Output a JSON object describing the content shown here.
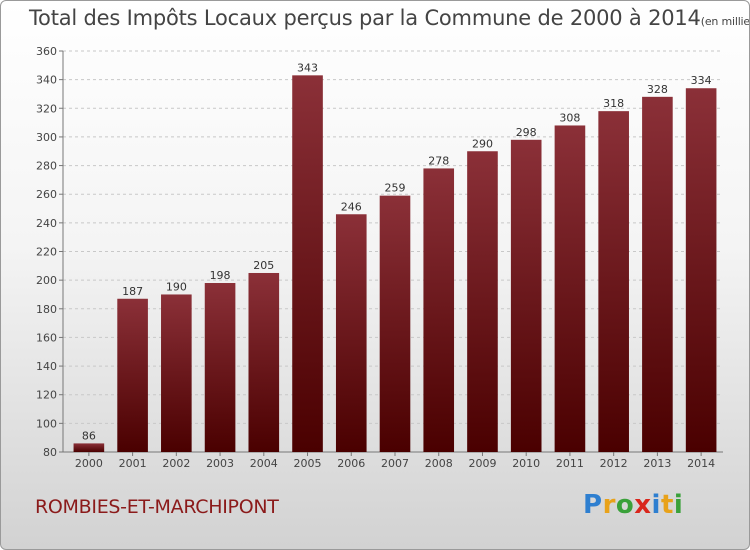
{
  "header": {
    "title": "Total des Impôts Locaux perçus par la Commune de 2000 à 2014",
    "unit": "(en milliers d'€)"
  },
  "footer": {
    "commune": "ROMBIES-ET-MARCHIPONT",
    "logo_letters": [
      "P",
      "r",
      "o",
      "x",
      "i",
      "t",
      "i"
    ],
    "logo_colors": [
      "#2e7fd0",
      "#e8a21a",
      "#3aa13a",
      "#d9261c",
      "#2e7fd0",
      "#e8a21a",
      "#3aa13a"
    ]
  },
  "chart_data": {
    "type": "bar",
    "title": "Total des Impôts Locaux perçus par la Commune de 2000 à 2014",
    "xlabel": "",
    "ylabel": "",
    "categories": [
      "2000",
      "2001",
      "2002",
      "2003",
      "2004",
      "2005",
      "2006",
      "2007",
      "2008",
      "2009",
      "2010",
      "2011",
      "2012",
      "2013",
      "2014"
    ],
    "values": [
      86,
      187,
      190,
      198,
      205,
      343,
      246,
      259,
      278,
      290,
      298,
      308,
      318,
      328,
      334
    ],
    "ylim": [
      80,
      360
    ],
    "yticks": [
      80,
      100,
      120,
      140,
      160,
      180,
      200,
      220,
      240,
      260,
      280,
      300,
      320,
      340,
      360
    ],
    "grid": true,
    "bar_color_top": "#8b3038",
    "bar_color_bottom": "#4a0000"
  }
}
